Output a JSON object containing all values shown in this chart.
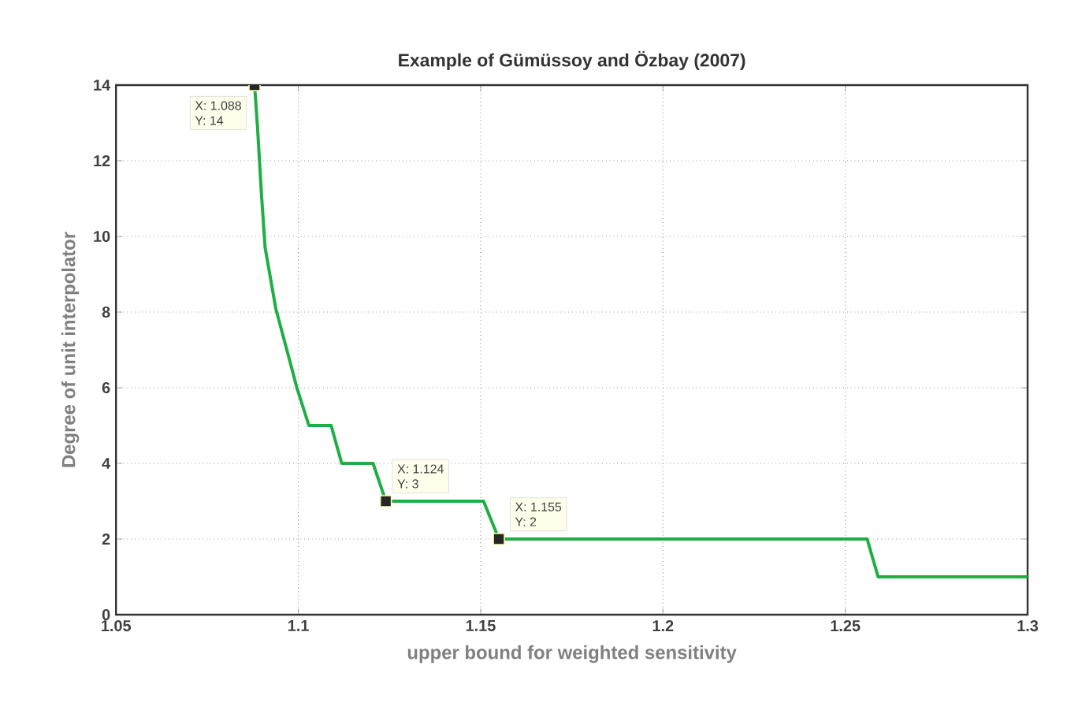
{
  "chart_data": {
    "type": "line",
    "title": "Example of Gümüssoy and Özbay (2007)",
    "xlabel": "upper bound for weighted sensitivity",
    "ylabel": "Degree of unit interpolator",
    "series": [
      {
        "color": "#1fae45",
        "x": [
          1.088,
          1.0888,
          1.0899,
          1.0909,
          1.0938,
          1.0974,
          1.0996,
          1.1029,
          1.109,
          1.1119,
          1.1205,
          1.124,
          1.1508,
          1.155,
          1.256,
          1.259,
          1.3
        ],
        "values": [
          14,
          12.9,
          11.1,
          9.7,
          8.1,
          6.8,
          6.0,
          5,
          5,
          4,
          4,
          3,
          3,
          2,
          2,
          1,
          1
        ]
      }
    ],
    "xlim": [
      1.05,
      1.3
    ],
    "ylim": [
      0,
      14
    ],
    "xticks": [
      1.05,
      1.1,
      1.15,
      1.2,
      1.25,
      1.3
    ],
    "yticks": [
      0,
      2,
      4,
      6,
      8,
      10,
      12,
      14
    ],
    "grid": true,
    "annotations": [
      {
        "text": "X: 1.088",
        "x": 1.088,
        "y": 14
      },
      "Y: 14",
      {
        "text": "X: 1.124",
        "x": 1.124,
        "y": 3
      },
      "Y: 3",
      {
        "text": "X: 1.155",
        "x": 1.155,
        "y": 2
      },
      "Y: 2"
    ]
  }
}
